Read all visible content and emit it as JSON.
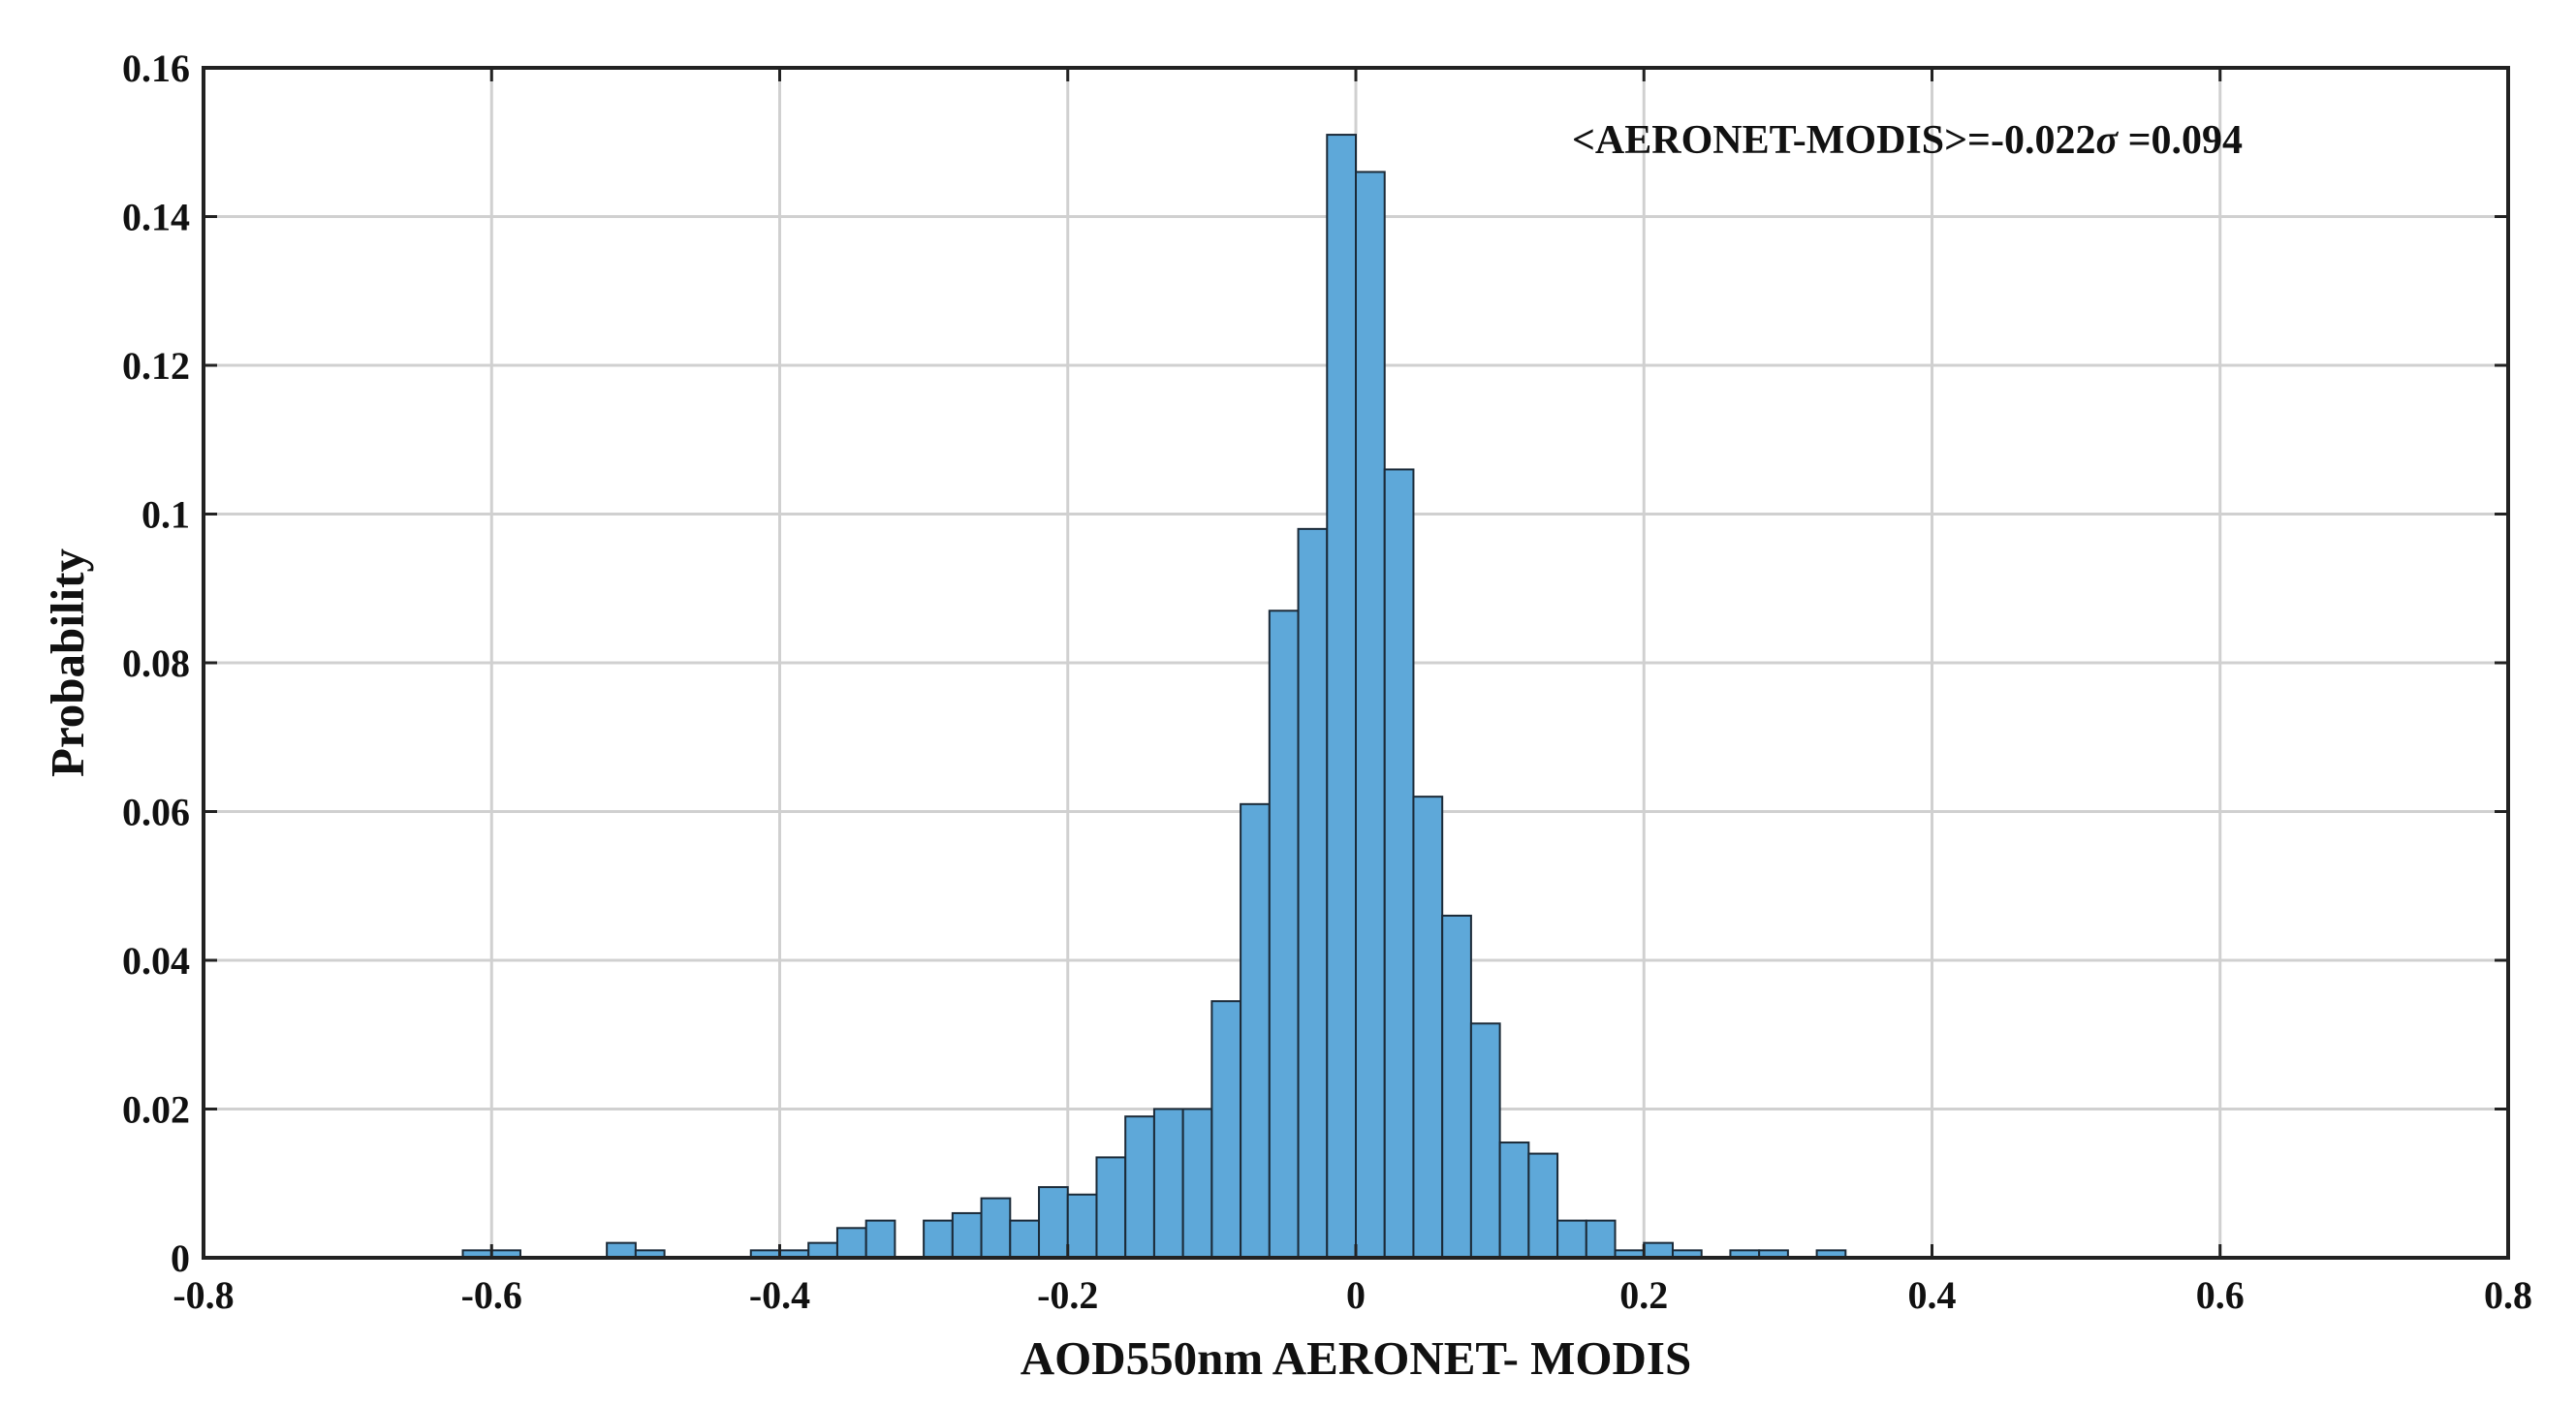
{
  "chart_data": {
    "type": "bar",
    "title": "",
    "xlabel": "AOD550nm AERONET- MODIS",
    "ylabel": "Probability",
    "xlim": [
      -0.8,
      0.8
    ],
    "ylim": [
      0,
      0.16
    ],
    "xticks": [
      -0.8,
      -0.6,
      -0.4,
      -0.2,
      0,
      0.2,
      0.4,
      0.6,
      0.8
    ],
    "yticks": [
      0,
      0.02,
      0.04,
      0.06,
      0.08,
      0.1,
      0.12,
      0.14,
      0.16
    ],
    "xtick_labels": [
      "-0.8",
      "-0.6",
      "-0.4",
      "-0.2",
      "0",
      "0.2",
      "0.4",
      "0.6",
      "0.8"
    ],
    "ytick_labels": [
      "0",
      "0.02",
      "0.04",
      "0.06",
      "0.08",
      "0.1",
      "0.12",
      "0.14",
      "0.16"
    ],
    "grid": true,
    "bar_color": "#5ea8d9",
    "bar_edge_color": "#1b2a38",
    "annotation": {
      "prefix": "<AERONET-MODIS>=-0.022",
      "symbol": "σ",
      "suffix": " =0.094",
      "placement": "top-right"
    },
    "bins": [
      {
        "x0": -0.62,
        "x1": -0.6,
        "value": 0.001
      },
      {
        "x0": -0.6,
        "x1": -0.58,
        "value": 0.001
      },
      {
        "x0": -0.52,
        "x1": -0.5,
        "value": 0.002
      },
      {
        "x0": -0.5,
        "x1": -0.48,
        "value": 0.001
      },
      {
        "x0": -0.42,
        "x1": -0.4,
        "value": 0.001
      },
      {
        "x0": -0.4,
        "x1": -0.38,
        "value": 0.001
      },
      {
        "x0": -0.38,
        "x1": -0.36,
        "value": 0.002
      },
      {
        "x0": -0.36,
        "x1": -0.34,
        "value": 0.004
      },
      {
        "x0": -0.34,
        "x1": -0.32,
        "value": 0.005
      },
      {
        "x0": -0.3,
        "x1": -0.28,
        "value": 0.005
      },
      {
        "x0": -0.28,
        "x1": -0.26,
        "value": 0.006
      },
      {
        "x0": -0.26,
        "x1": -0.24,
        "value": 0.008
      },
      {
        "x0": -0.24,
        "x1": -0.22,
        "value": 0.005
      },
      {
        "x0": -0.22,
        "x1": -0.2,
        "value": 0.0095
      },
      {
        "x0": -0.2,
        "x1": -0.18,
        "value": 0.0085
      },
      {
        "x0": -0.18,
        "x1": -0.16,
        "value": 0.0135
      },
      {
        "x0": -0.16,
        "x1": -0.14,
        "value": 0.019
      },
      {
        "x0": -0.14,
        "x1": -0.12,
        "value": 0.02
      },
      {
        "x0": -0.12,
        "x1": -0.1,
        "value": 0.02
      },
      {
        "x0": -0.1,
        "x1": -0.08,
        "value": 0.0345
      },
      {
        "x0": -0.08,
        "x1": -0.06,
        "value": 0.061
      },
      {
        "x0": -0.06,
        "x1": -0.04,
        "value": 0.087
      },
      {
        "x0": -0.04,
        "x1": -0.02,
        "value": 0.098
      },
      {
        "x0": -0.02,
        "x1": 0.0,
        "value": 0.151
      },
      {
        "x0": 0.0,
        "x1": 0.02,
        "value": 0.146
      },
      {
        "x0": 0.02,
        "x1": 0.04,
        "value": 0.106
      },
      {
        "x0": 0.04,
        "x1": 0.06,
        "value": 0.062
      },
      {
        "x0": 0.06,
        "x1": 0.08,
        "value": 0.046
      },
      {
        "x0": 0.08,
        "x1": 0.1,
        "value": 0.0315
      },
      {
        "x0": 0.1,
        "x1": 0.12,
        "value": 0.0155
      },
      {
        "x0": 0.12,
        "x1": 0.14,
        "value": 0.014
      },
      {
        "x0": 0.14,
        "x1": 0.16,
        "value": 0.005
      },
      {
        "x0": 0.16,
        "x1": 0.18,
        "value": 0.005
      },
      {
        "x0": 0.18,
        "x1": 0.2,
        "value": 0.001
      },
      {
        "x0": 0.2,
        "x1": 0.22,
        "value": 0.002
      },
      {
        "x0": 0.22,
        "x1": 0.24,
        "value": 0.001
      },
      {
        "x0": 0.26,
        "x1": 0.28,
        "value": 0.001
      },
      {
        "x0": 0.28,
        "x1": 0.3,
        "value": 0.001
      },
      {
        "x0": 0.32,
        "x1": 0.34,
        "value": 0.001
      }
    ]
  }
}
